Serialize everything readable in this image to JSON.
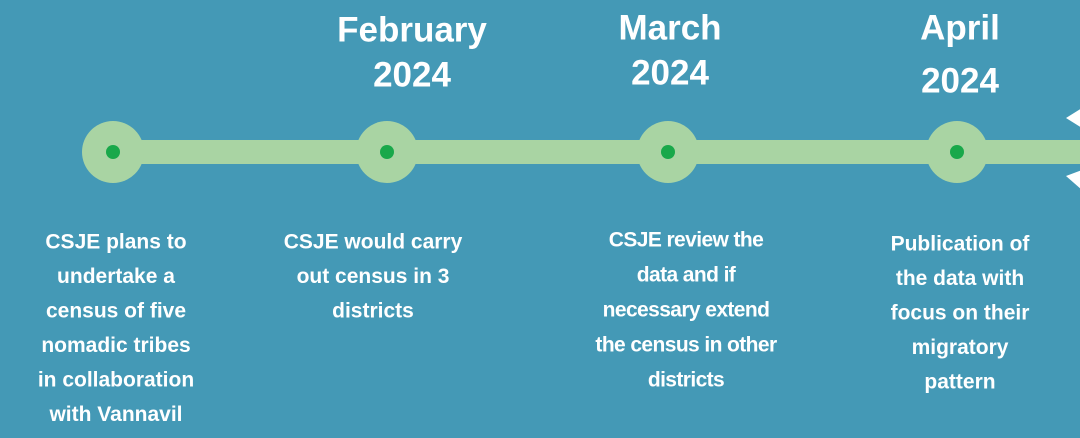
{
  "timeline": {
    "milestones": [
      {
        "description": [
          "CSJE plans to",
          "undertake a",
          "census of five",
          "nomadic tribes",
          "in collaboration",
          "with Vannavil"
        ]
      },
      {
        "date": [
          "February",
          "2024"
        ],
        "description": [
          "CSJE would carry",
          "out census in 3",
          "districts"
        ]
      },
      {
        "date": [
          "March",
          "2024"
        ],
        "description": [
          "CSJE review the",
          "data and if",
          "necessary extend",
          "the census in other",
          "districts"
        ]
      },
      {
        "date": [
          "April",
          "2024"
        ],
        "description": [
          "Publication of",
          "the data with",
          "focus on their",
          "migratory",
          "pattern"
        ]
      }
    ]
  }
}
